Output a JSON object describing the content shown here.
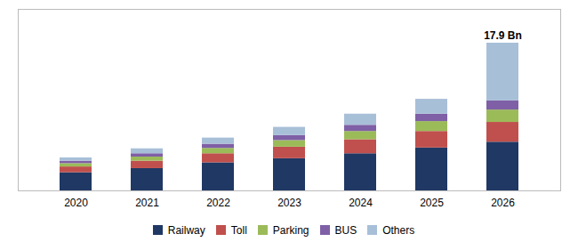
{
  "chart_data": {
    "type": "bar",
    "stacked": true,
    "categories": [
      "2020",
      "2021",
      "2022",
      "2023",
      "2024",
      "2025",
      "2026"
    ],
    "series": [
      {
        "name": "Railway",
        "color": "#1f3864",
        "values": [
          2.2,
          2.7,
          3.4,
          3.9,
          4.5,
          5.2,
          5.9
        ]
      },
      {
        "name": "Toll",
        "color": "#c0504d",
        "values": [
          0.7,
          0.9,
          1.1,
          1.4,
          1.7,
          2.0,
          2.4
        ]
      },
      {
        "name": "Parking",
        "color": "#9bbb59",
        "values": [
          0.4,
          0.5,
          0.65,
          0.8,
          1.0,
          1.2,
          1.5
        ]
      },
      {
        "name": "BUS",
        "color": "#7f5fa6",
        "values": [
          0.3,
          0.4,
          0.5,
          0.6,
          0.75,
          0.9,
          1.1
        ]
      },
      {
        "name": "Others",
        "color": "#a8bfd8",
        "values": [
          0.4,
          0.6,
          0.75,
          1.0,
          1.35,
          1.8,
          7.0
        ]
      }
    ],
    "annotations": [
      {
        "text": "17.9 Bn",
        "x": "2026"
      }
    ],
    "ylim": [
      0,
      22
    ],
    "tick_labels": "x",
    "grid": false,
    "legend": "bottom"
  }
}
